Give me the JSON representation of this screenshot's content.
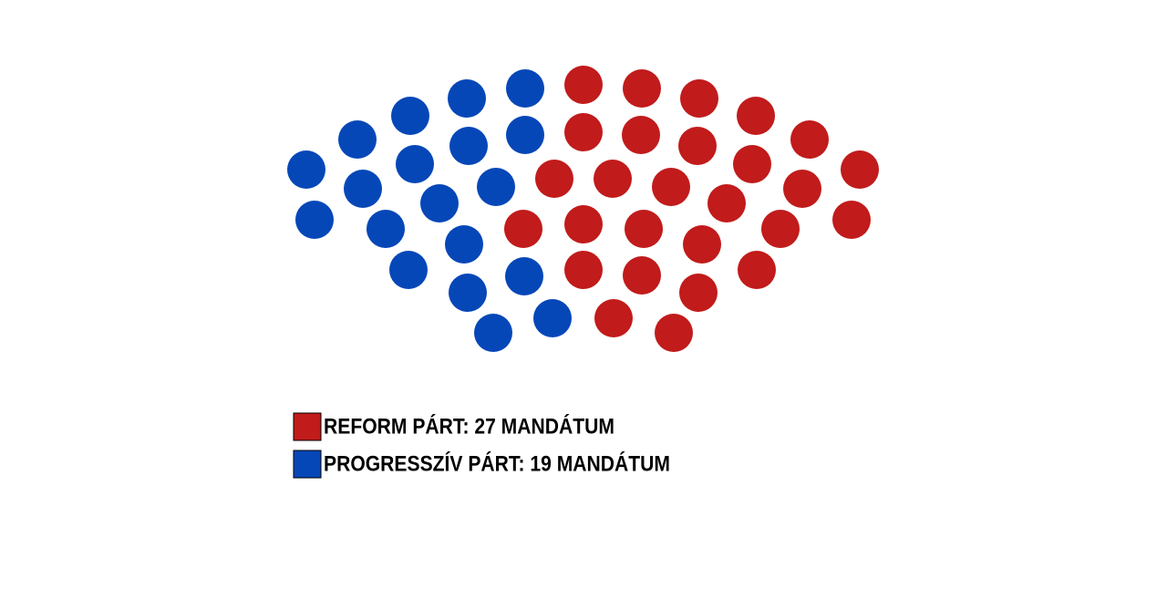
{
  "chart_data": {
    "type": "parliament",
    "series": [
      {
        "name": "REFORM PÁRT: 27 MANDÁTUM",
        "color": "#c11b1b",
        "value": 27
      },
      {
        "name": "PROGRESSZÍV PÁRT: 19 MANDÁTUM",
        "color": "#0647b8",
        "value": 19
      }
    ]
  }
}
